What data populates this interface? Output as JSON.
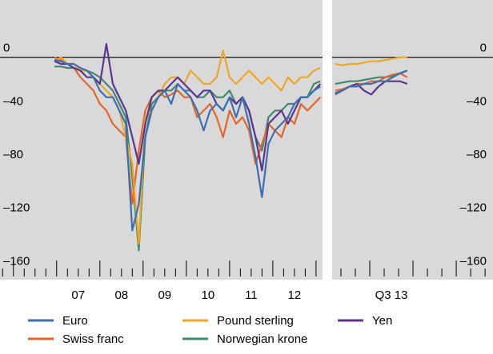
{
  "chart_data": [
    {
      "type": "line",
      "x": [
        2006.95,
        2007.1,
        2007.25,
        2007.4,
        2007.55,
        2007.7,
        2007.85,
        2008.0,
        2008.15,
        2008.3,
        2008.45,
        2008.6,
        2008.75,
        2008.9,
        2009.05,
        2009.2,
        2009.35,
        2009.5,
        2009.65,
        2009.8,
        2009.95,
        2010.1,
        2010.25,
        2010.4,
        2010.55,
        2010.7,
        2010.85,
        2011.0,
        2011.15,
        2011.3,
        2011.45,
        2011.6,
        2011.75,
        2011.9,
        2012.05,
        2012.2,
        2012.35,
        2012.5,
        2012.65,
        2012.8,
        2012.95,
        2013.1
      ],
      "series": [
        {
          "name": "Euro",
          "color": "#3a70b3",
          "values": [
            -2,
            -3,
            -5,
            -5,
            -8,
            -10,
            -15,
            -25,
            -30,
            -30,
            -40,
            -50,
            -130,
            -110,
            -60,
            -40,
            -30,
            -25,
            -35,
            -20,
            -25,
            -30,
            -40,
            -55,
            -40,
            -35,
            -40,
            -30,
            -45,
            -30,
            -50,
            -75,
            -105,
            -65,
            -55,
            -50,
            -45,
            -35,
            -30,
            -30,
            -25,
            -22
          ]
        },
        {
          "name": "Swiss franc",
          "color": "#e5652b",
          "values": [
            0,
            -2,
            -5,
            -8,
            -15,
            -20,
            -25,
            -35,
            -40,
            -50,
            -55,
            -60,
            -110,
            -70,
            -40,
            -30,
            -25,
            -30,
            -28,
            -25,
            -30,
            -30,
            -45,
            -40,
            -35,
            -45,
            -60,
            -40,
            -50,
            -45,
            -55,
            -80,
            -65,
            -50,
            -55,
            -60,
            -45,
            -50,
            -35,
            -40,
            -35,
            -30
          ]
        },
        {
          "name": "Pound sterling",
          "color": "#f0a623",
          "values": [
            -3,
            0,
            -5,
            -5,
            -10,
            -10,
            -15,
            -20,
            -25,
            -30,
            -40,
            -60,
            -80,
            -140,
            -45,
            -40,
            -30,
            -20,
            -15,
            -15,
            -20,
            -10,
            -15,
            -20,
            -20,
            -15,
            5,
            -15,
            -20,
            -15,
            -10,
            -15,
            -20,
            -15,
            -20,
            -25,
            -15,
            -20,
            -15,
            -15,
            -10,
            -8
          ]
        },
        {
          "name": "Norwegian krone",
          "color": "#3f8a6f",
          "values": [
            -7,
            -7,
            -8,
            -8,
            -10,
            -10,
            -12,
            -15,
            -20,
            -25,
            -35,
            -45,
            -90,
            -145,
            -60,
            -35,
            -30,
            -25,
            -25,
            -20,
            -25,
            -25,
            -30,
            -30,
            -25,
            -30,
            -30,
            -25,
            -35,
            -30,
            -40,
            -60,
            -70,
            -45,
            -40,
            -40,
            -35,
            -35,
            -30,
            -30,
            -20,
            -18
          ]
        },
        {
          "name": "Yen",
          "color": "#5c3591",
          "values": [
            -3,
            -5,
            -5,
            -8,
            -10,
            -15,
            -15,
            -20,
            10,
            -20,
            -30,
            -40,
            -60,
            -80,
            -50,
            -30,
            -25,
            -25,
            -20,
            -15,
            -20,
            -25,
            -30,
            -25,
            -25,
            -35,
            -40,
            -30,
            -35,
            -30,
            -40,
            -60,
            -85,
            -50,
            -45,
            -40,
            -50,
            -40,
            -30,
            -30,
            -25,
            -20
          ]
        }
      ],
      "xlim": [
        2005.69,
        2013.15
      ],
      "xticks": [
        {
          "value": 2007.5,
          "label": "07"
        },
        {
          "value": 2008.5,
          "label": "08"
        },
        {
          "value": 2009.5,
          "label": "09"
        },
        {
          "value": 2010.5,
          "label": "10"
        },
        {
          "value": 2011.5,
          "label": "11"
        },
        {
          "value": 2012.5,
          "label": "12"
        }
      ],
      "ylim": [
        -167,
        43
      ],
      "yticks": [
        {
          "value": -160,
          "label": "–160"
        },
        {
          "value": -120,
          "label": "–120"
        },
        {
          "value": -80,
          "label": "–80"
        },
        {
          "value": -40,
          "label": "–40"
        },
        0
      ],
      "ytick_side": "left"
    },
    {
      "type": "line",
      "x": [
        4.6,
        5.1,
        5.6,
        6.1,
        6.6,
        7.1,
        7.6,
        8.1,
        8.6,
        9.1,
        9.6
      ],
      "series": [
        {
          "color": "#3a70b3",
          "values": [
            -28,
            -25,
            -22,
            -22,
            -20,
            -20,
            -18,
            -18,
            -15,
            -12,
            -10
          ]
        },
        {
          "color": "#e5652b",
          "values": [
            -25,
            -24,
            -22,
            -20,
            -20,
            -18,
            -18,
            -15,
            -13,
            -12,
            -15
          ]
        },
        {
          "color": "#f0a623",
          "values": [
            -5,
            -6,
            -5,
            -5,
            -4,
            -3,
            -3,
            -2,
            -1,
            0,
            0
          ]
        },
        {
          "color": "#3f8a6f",
          "values": [
            -20,
            -19,
            -18,
            -18,
            -17,
            -16,
            -15,
            -15,
            -14,
            -12,
            -10
          ]
        },
        {
          "color": "#5c3591",
          "values": [
            -27,
            -25,
            -22,
            -20,
            -25,
            -28,
            -22,
            -18,
            -18,
            -18,
            -20
          ]
        }
      ],
      "xlim": [
        4.39,
        15.55
      ],
      "xticks": [
        {
          "value": 8.5,
          "label": "Q3 13"
        }
      ],
      "ylim": [
        -167,
        43
      ],
      "yticks": [
        {
          "value": -160,
          "label": "–160"
        },
        {
          "value": -120,
          "label": "–120"
        },
        {
          "value": -80,
          "label": "–80"
        },
        {
          "value": -40,
          "label": "–40"
        },
        0
      ],
      "ytick_side": "right"
    }
  ]
}
